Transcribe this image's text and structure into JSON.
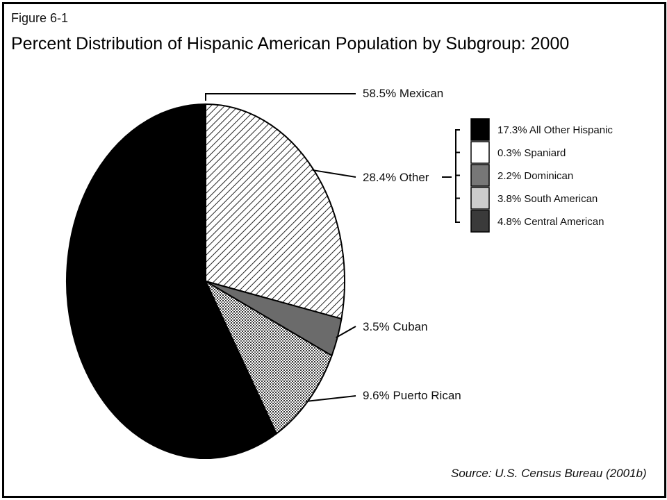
{
  "figure_number": "Figure 6-1",
  "title": "Percent Distribution of Hispanic American Population by Subgroup: 2000",
  "source": "Source: U.S. Census Bureau (2001b)",
  "chart_data": {
    "type": "pie",
    "title": "Percent Distribution of Hispanic American Population by Subgroup: 2000",
    "slices": [
      {
        "label": "58.5% Mexican",
        "name": "Mexican",
        "value": 58.5,
        "fill": "solid",
        "color": "#000000"
      },
      {
        "label": "28.4% Other",
        "name": "Other",
        "value": 28.4,
        "fill": "hatch",
        "color": "#555555"
      },
      {
        "label": "3.5% Cuban",
        "name": "Cuban",
        "value": 3.5,
        "fill": "solid",
        "color": "#6b6b6b"
      },
      {
        "label": "9.6% Puerto Rican",
        "name": "Puerto Rican",
        "value": 9.6,
        "fill": "dots",
        "color": "#999999"
      }
    ],
    "other_breakdown": [
      {
        "label": "17.3% All Other Hispanic",
        "value": 17.3,
        "color": "#000000"
      },
      {
        "label": "0.3% Spaniard",
        "value": 0.3,
        "color": "#ffffff"
      },
      {
        "label": "2.2% Dominican",
        "value": 2.2,
        "color": "#777777"
      },
      {
        "label": "3.8% South American",
        "value": 3.8,
        "color": "#cccccc"
      },
      {
        "label": "4.8% Central American",
        "value": 4.8,
        "color": "#3a3a3a"
      }
    ],
    "legend_position": "right"
  }
}
